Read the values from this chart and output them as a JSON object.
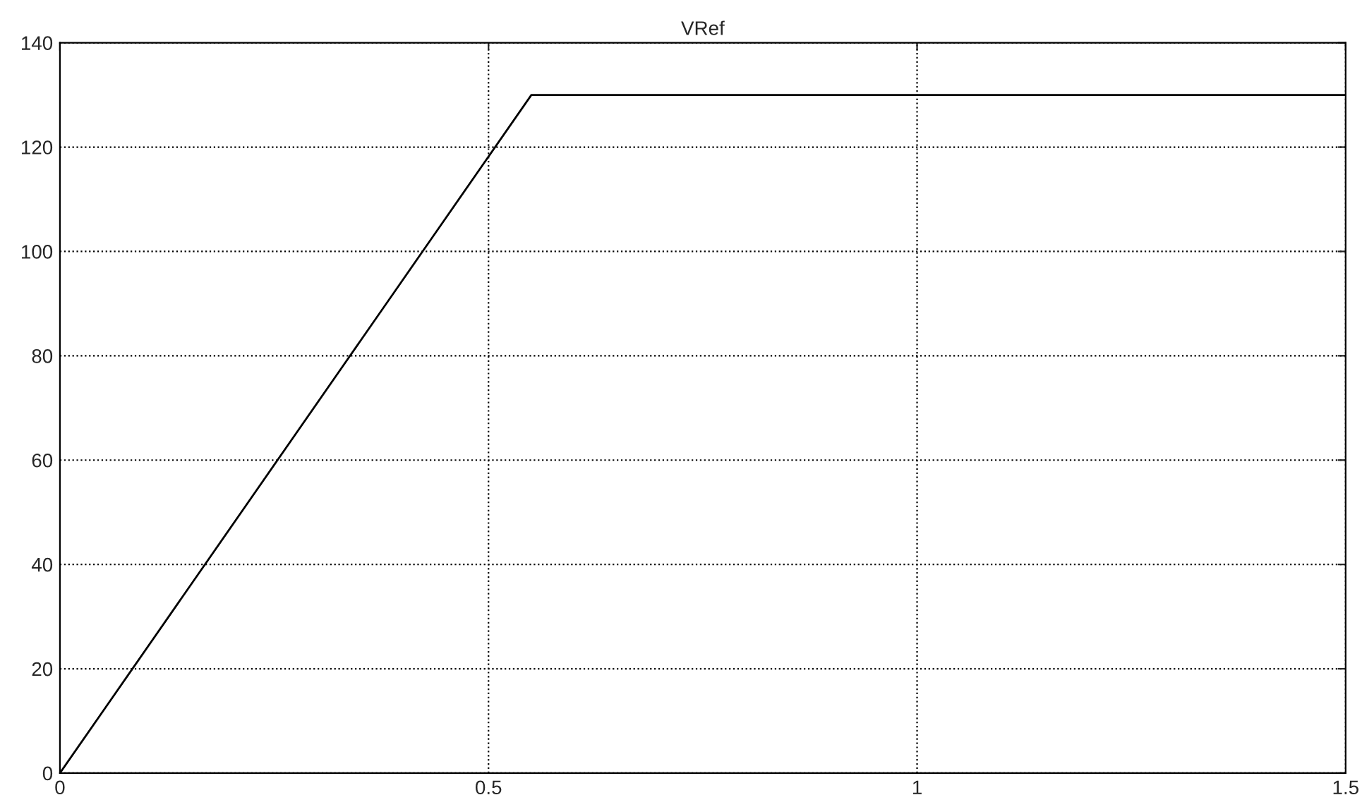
{
  "chart_data": {
    "type": "line",
    "title": "VRef",
    "x": [
      0,
      0.55,
      1.5
    ],
    "series": [
      {
        "color": "#000000",
        "values": [
          0,
          130,
          130
        ]
      }
    ],
    "xlim": [
      0,
      1.5
    ],
    "xticks": [
      0,
      0.5,
      1,
      1.5
    ],
    "ylim": [
      0,
      140
    ],
    "yticks": [
      0,
      20,
      40,
      60,
      80,
      100,
      120,
      140
    ],
    "grid": true,
    "line_style": "solid",
    "marker": "none"
  }
}
